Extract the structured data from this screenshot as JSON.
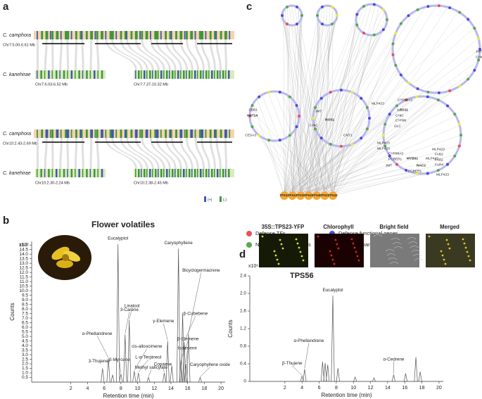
{
  "panel_labels": [
    "a",
    "b",
    "c",
    "d"
  ],
  "synteny": {
    "species_top": "C. camphora",
    "species_bottom": "C. kanehirae",
    "rows": [
      {
        "top": "Chr7:5.00-6.61 Mb",
        "bottom": [
          "Chr7:6.03-6.52 Mb",
          "Chr7:7.37-10.32 Mb"
        ]
      },
      {
        "top": "Chr10:2.43-2.69 Mb",
        "bottom": [
          "Chr10:2.30-2.24 Mb",
          "Chr10:2.38-2.45 Mb"
        ]
      }
    ],
    "strand_legend": [
      {
        "label": "(+)",
        "color": "#3d5bb0"
      },
      {
        "label": "(-)",
        "color": "#3a9a3a"
      }
    ]
  },
  "network": {
    "tps_nodes": [
      "TPS32",
      "TPS43",
      "TPS25",
      "TPS40",
      "TPS46",
      "TPS22",
      "TPS43"
    ],
    "gene_labels": [
      "CBB1",
      "HAT14",
      "CESA3",
      "JMT",
      "CHIC",
      "BOS1",
      "CNT1",
      "JMT",
      "CHIC",
      "MLP423",
      "CYP98A3",
      "LBD11",
      "CHIC",
      "CYP96",
      "GLC",
      "MLP423",
      "MLP423",
      "CYP98A3",
      "PCBER1",
      "JMT",
      "MYB31",
      "NAC2",
      "PCBER1",
      "MLP423",
      "MLP423",
      "FAB2",
      "FAB2",
      "FAR4",
      "MLP423"
    ],
    "legend": [
      {
        "label": "Defense TFs",
        "color": "#e8505b"
      },
      {
        "label": "Defense functional genes",
        "color": "#4b4bdc"
      },
      {
        "label": "NB_LRR domain genes",
        "color": "#58a84a"
      },
      {
        "label": "Phenylpropanoid related genes",
        "color": "#ecec3a"
      }
    ]
  },
  "images": {
    "labels": [
      "35S::TPS23-YFP",
      "Chlorophyll",
      "Bright field",
      "Merged"
    ]
  },
  "chart_data": [
    {
      "type": "chromatogram",
      "title": "Flower volatiles",
      "scale_label": "x10⁷",
      "xlabel": "Retention time (min)",
      "ylabel": "Counts",
      "xlim": [
        -2.7,
        20.5
      ],
      "xticks": [
        2,
        4,
        6,
        8,
        10,
        12,
        14,
        16,
        18,
        20
      ],
      "ylim": [
        0,
        15.4
      ],
      "yticks": [
        0.5,
        {
          "value": 1,
          "label": "1.0"
        },
        1.5,
        {
          "value": 2,
          "label": "2.0"
        },
        2.5,
        {
          "value": 3,
          "label": "3.0"
        },
        3.5,
        {
          "value": 4,
          "label": "4.0"
        },
        4.5,
        {
          "value": 5,
          "label": "5.0"
        },
        5.5,
        {
          "value": 6,
          "label": "6.0"
        },
        6.5,
        {
          "value": 7,
          "label": "7.0"
        },
        7.5,
        {
          "value": 8,
          "label": "8.0"
        },
        8.5,
        {
          "value": 9,
          "label": "9.0"
        },
        9.5,
        {
          "value": 10,
          "label": "10.0"
        },
        10.5,
        {
          "value": 11,
          "label": "11.0"
        },
        11.5,
        {
          "value": 12,
          "label": "12.0"
        },
        12.5,
        {
          "value": 13,
          "label": "13.0"
        },
        13.5,
        {
          "value": 14,
          "label": "14.0"
        },
        14.5,
        {
          "value": 15,
          "label": "15.0"
        }
      ],
      "color": "#555555",
      "x": [
        5.8,
        6.5,
        7.0,
        7.65,
        8.0,
        8.5,
        9.0,
        9.6,
        10.1,
        11.3,
        13.2,
        13.6,
        14.1,
        14.9,
        15.2,
        15.4,
        15.6,
        15.8,
        16.1,
        17.5
      ],
      "values": [
        1.5,
        2.6,
        0.8,
        15.1,
        0.9,
        5.2,
        6.8,
        1.2,
        1.0,
        0.5,
        1.0,
        4.5,
        1.8,
        14.6,
        2.4,
        7.6,
        4.4,
        2.0,
        5.3,
        0.5
      ],
      "labels": [
        "3-Thujene",
        "α-Phellandrene",
        null,
        "Eucalyptol",
        "β-Myrcene",
        "3-Carene",
        "Linalool",
        "cis-alloocimene",
        "L-α-Terpineol",
        "Methyl salicylate",
        "Copaene",
        "γ-Elemene",
        null,
        "Caryophyllene",
        "β-Elemene",
        null,
        "β-Cubebene",
        "Isoledene",
        "Bicyclogermacrene",
        "Caryophyllene oxide"
      ],
      "label_colors": [
        "#d2691e",
        "#d2691e",
        null,
        "#d2691e",
        "#d2691e",
        "#d2691e",
        "#d2691e",
        "#d2691e",
        "#d2691e",
        "#333333",
        "#5a9e2f",
        "#5a9e2f",
        null,
        "#5a9e2f",
        "#5a9e2f",
        null,
        "#5a9e2f",
        "#5a9e2f",
        "#5a9e2f",
        "#5a9e2f"
      ]
    },
    {
      "type": "chromatogram",
      "title": "TPS56",
      "scale_label": "x10⁶",
      "xlabel": "Retention time (min)",
      "ylabel": "Counts",
      "xlim": [
        -2.1,
        20.5
      ],
      "xticks": [
        2,
        4,
        6,
        8,
        10,
        12,
        14,
        16,
        18,
        20
      ],
      "ylim": [
        0,
        2.4
      ],
      "yticks": [
        0,
        0.4,
        0.8,
        1.2,
        1.6,
        {
          "value": 2,
          "label": "2.0"
        },
        2.4
      ],
      "color": "#555555",
      "x": [
        4.0,
        4.3,
        6.4,
        6.7,
        7.0,
        7.6,
        8.2,
        10.2,
        12.4,
        14.7,
        16.1,
        17.3,
        17.8
      ],
      "values": [
        0.12,
        0.28,
        0.45,
        0.42,
        0.38,
        1.95,
        0.3,
        0.1,
        0.08,
        0.15,
        0.18,
        0.55,
        0.22
      ],
      "labels": [
        "β-Thujene",
        "α-Phellandrene",
        null,
        null,
        null,
        "Eucalyptol",
        null,
        null,
        null,
        "α-Cedrene",
        null,
        null,
        null
      ],
      "label_colors": [
        "#111111",
        "#111111",
        null,
        null,
        null,
        "#111111",
        null,
        null,
        null,
        "#111111",
        null,
        null,
        null
      ]
    }
  ]
}
